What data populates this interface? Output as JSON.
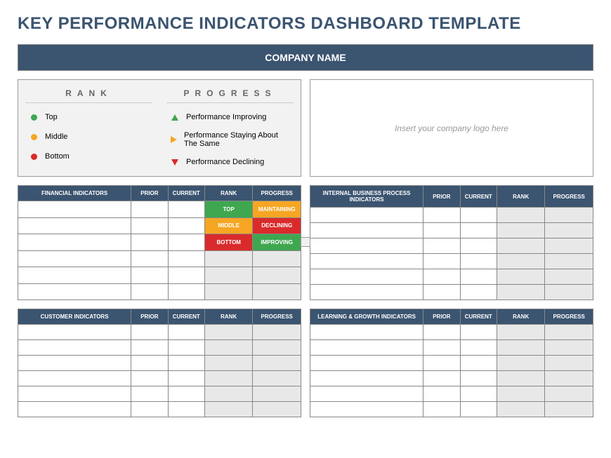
{
  "title": "KEY PERFORMANCE INDICATORS DASHBOARD TEMPLATE",
  "company_bar": "COMPANY NAME",
  "logo_placeholder": "Insert your company logo here",
  "legend": {
    "rank_header": "RANK",
    "progress_header": "PROGRESS",
    "ranks": [
      {
        "label": "Top",
        "color": "#3fa750"
      },
      {
        "label": "Middle",
        "color": "#f6a623"
      },
      {
        "label": "Bottom",
        "color": "#d92b2b"
      }
    ],
    "progress": [
      {
        "label": "Performance Improving",
        "shape": "up",
        "color": "#3fa750"
      },
      {
        "label": "Performance Staying About The Same",
        "shape": "right",
        "color": "#f6a623"
      },
      {
        "label": "Performance Declining",
        "shape": "down",
        "color": "#d92b2b"
      }
    ]
  },
  "tables": {
    "columns_common": [
      "PRIOR",
      "CURRENT",
      "RANK",
      "PROGRESS"
    ],
    "quadrants": [
      {
        "title": "FINANCIAL INDICATORS",
        "rows": [
          {
            "rank": {
              "text": "TOP",
              "cls": "cell-green"
            },
            "progress": {
              "text": "MAINTAINING",
              "cls": "cell-yellow"
            }
          },
          {
            "rank": {
              "text": "MIDDLE",
              "cls": "cell-yellow"
            },
            "progress": {
              "text": "DECLINING",
              "cls": "cell-red"
            }
          },
          {
            "rank": {
              "text": "BOTTOM",
              "cls": "cell-red"
            },
            "progress": {
              "text": "IMPROVING",
              "cls": "cell-green"
            },
            "handle": true
          },
          {
            "rank": {
              "text": "",
              "cls": "cell-gray"
            },
            "progress": {
              "text": "",
              "cls": "cell-gray"
            }
          },
          {
            "rank": {
              "text": "",
              "cls": "cell-gray"
            },
            "progress": {
              "text": "",
              "cls": "cell-gray"
            }
          },
          {
            "rank": {
              "text": "",
              "cls": "cell-gray"
            },
            "progress": {
              "text": "",
              "cls": "cell-gray"
            }
          }
        ]
      },
      {
        "title": "INTERNAL BUSINESS PROCESS INDICATORS",
        "rows": [
          {
            "rank": {
              "text": "",
              "cls": "cell-gray"
            },
            "progress": {
              "text": "",
              "cls": "cell-gray"
            }
          },
          {
            "rank": {
              "text": "",
              "cls": "cell-gray"
            },
            "progress": {
              "text": "",
              "cls": "cell-gray"
            }
          },
          {
            "rank": {
              "text": "",
              "cls": "cell-gray"
            },
            "progress": {
              "text": "",
              "cls": "cell-gray"
            }
          },
          {
            "rank": {
              "text": "",
              "cls": "cell-gray"
            },
            "progress": {
              "text": "",
              "cls": "cell-gray"
            }
          },
          {
            "rank": {
              "text": "",
              "cls": "cell-gray"
            },
            "progress": {
              "text": "",
              "cls": "cell-gray"
            }
          },
          {
            "rank": {
              "text": "",
              "cls": "cell-gray"
            },
            "progress": {
              "text": "",
              "cls": "cell-gray"
            }
          }
        ]
      },
      {
        "title": "CUSTOMER INDICATORS",
        "rows": [
          {
            "rank": {
              "text": "",
              "cls": "cell-gray"
            },
            "progress": {
              "text": "",
              "cls": "cell-gray"
            }
          },
          {
            "rank": {
              "text": "",
              "cls": "cell-gray"
            },
            "progress": {
              "text": "",
              "cls": "cell-gray"
            }
          },
          {
            "rank": {
              "text": "",
              "cls": "cell-gray"
            },
            "progress": {
              "text": "",
              "cls": "cell-gray"
            }
          },
          {
            "rank": {
              "text": "",
              "cls": "cell-gray"
            },
            "progress": {
              "text": "",
              "cls": "cell-gray"
            }
          },
          {
            "rank": {
              "text": "",
              "cls": "cell-gray"
            },
            "progress": {
              "text": "",
              "cls": "cell-gray"
            }
          },
          {
            "rank": {
              "text": "",
              "cls": "cell-gray"
            },
            "progress": {
              "text": "",
              "cls": "cell-gray"
            }
          }
        ]
      },
      {
        "title": "LEARNING & GROWTH INDICATORS",
        "rows": [
          {
            "rank": {
              "text": "",
              "cls": "cell-gray"
            },
            "progress": {
              "text": "",
              "cls": "cell-gray"
            }
          },
          {
            "rank": {
              "text": "",
              "cls": "cell-gray"
            },
            "progress": {
              "text": "",
              "cls": "cell-gray"
            }
          },
          {
            "rank": {
              "text": "",
              "cls": "cell-gray"
            },
            "progress": {
              "text": "",
              "cls": "cell-gray"
            }
          },
          {
            "rank": {
              "text": "",
              "cls": "cell-gray"
            },
            "progress": {
              "text": "",
              "cls": "cell-gray"
            }
          },
          {
            "rank": {
              "text": "",
              "cls": "cell-gray"
            },
            "progress": {
              "text": "",
              "cls": "cell-gray"
            }
          },
          {
            "rank": {
              "text": "",
              "cls": "cell-gray"
            },
            "progress": {
              "text": "",
              "cls": "cell-gray"
            }
          }
        ]
      }
    ]
  },
  "colors": {
    "brand": "#3b5470",
    "green": "#3fa750",
    "yellow": "#f6a623",
    "red": "#d92b2b",
    "gray_cell": "#e8e8e8",
    "border": "#888888",
    "bg_legend": "#f2f2f2"
  }
}
